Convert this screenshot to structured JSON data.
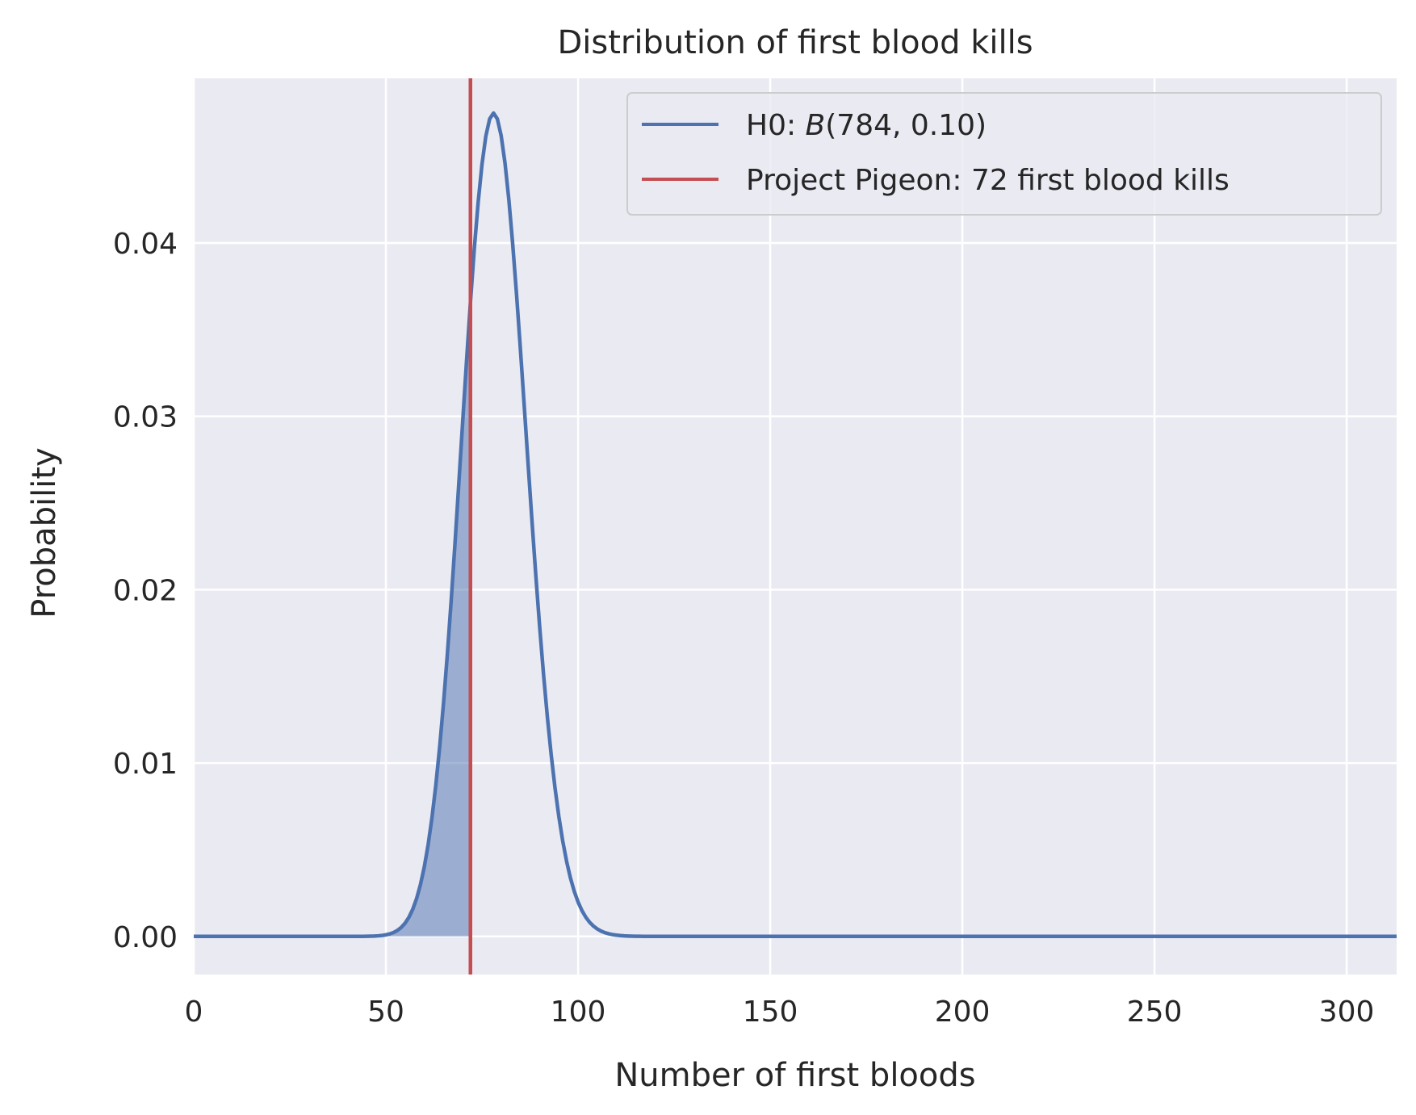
{
  "chart_data": {
    "type": "line",
    "title": "Distribution of first blood kills",
    "xlabel": "Number of first bloods",
    "ylabel": "Probability",
    "xlim": [
      0,
      313
    ],
    "ylim": [
      -0.0022,
      0.0495
    ],
    "xticks": [
      0,
      50,
      100,
      150,
      200,
      250,
      300
    ],
    "xtick_labels": [
      "0",
      "50",
      "100",
      "150",
      "200",
      "250",
      "300"
    ],
    "yticks": [
      0.0,
      0.01,
      0.02,
      0.03,
      0.04
    ],
    "ytick_labels": [
      "0.00",
      "0.01",
      "0.02",
      "0.03",
      "0.04"
    ],
    "grid": true,
    "legend_position": "top-right",
    "series": [
      {
        "name": "H0: B(784, 0.10)",
        "legend_prefix": "H0: ",
        "legend_math_italic": "B",
        "legend_suffix": "(784, 0.10)",
        "color": "#4c72b0",
        "kind": "binomial_pmf",
        "n": 784,
        "p": 0.1,
        "x_range": [
          0,
          313
        ]
      },
      {
        "name": "Project Pigeon: 72 first blood kills",
        "color": "#c44e52",
        "kind": "vline",
        "x": 72
      }
    ],
    "shaded_region": {
      "x_from": 0,
      "x_to": 72,
      "color": "#4c72b0",
      "opacity": 0.5
    },
    "colors": {
      "plot_background": "#eaeaf2",
      "grid": "#ffffff",
      "text": "#262626"
    }
  }
}
